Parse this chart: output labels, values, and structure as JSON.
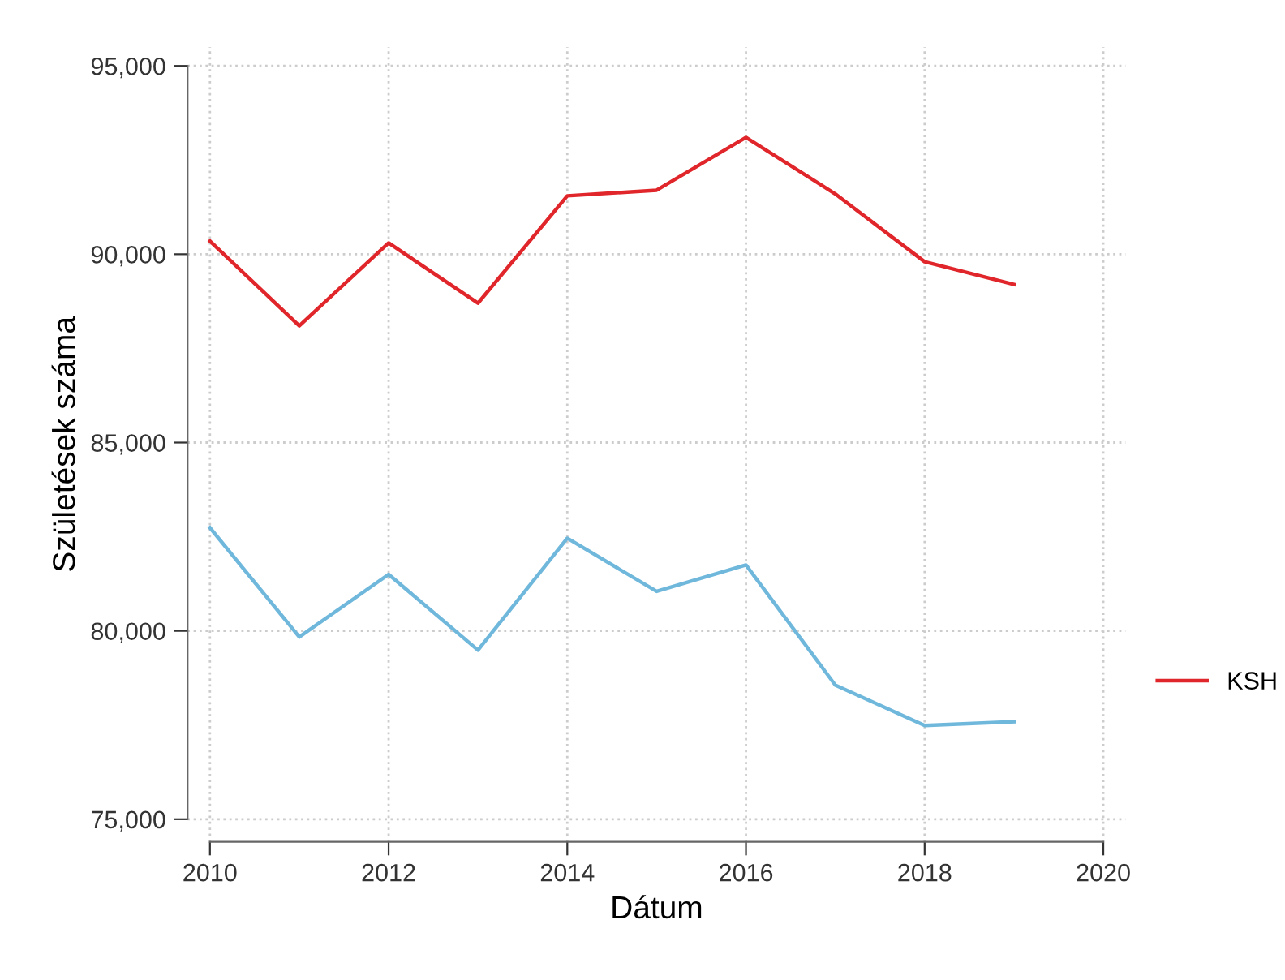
{
  "chart_data": {
    "type": "line",
    "xlabel": "Dátum",
    "ylabel": "Születések száma",
    "x": [
      2010,
      2011,
      2012,
      2013,
      2014,
      2015,
      2016,
      2017,
      2018,
      2019
    ],
    "series": [
      {
        "name": "KSH",
        "color": "#e0262a",
        "values": [
          90350,
          88100,
          90300,
          88700,
          91550,
          91700,
          93100,
          91600,
          89800,
          89200
        ]
      },
      {
        "color": "#6fb8dc",
        "values": [
          82740,
          79840,
          81500,
          79490,
          82460,
          81050,
          81750,
          78560,
          77490,
          77590
        ]
      }
    ],
    "xlim": [
      2009.75,
      2020.25
    ],
    "ylim": [
      74400,
      95500
    ],
    "xticks": [
      2010,
      2012,
      2014,
      2016,
      2018,
      2020
    ],
    "yticks": [
      {
        "value": 75000,
        "label": "75,000"
      },
      {
        "value": 80000,
        "label": "80,000"
      },
      {
        "value": 85000,
        "label": "85,000"
      },
      {
        "value": 90000,
        "label": "90,000"
      },
      {
        "value": 95000,
        "label": "95,000"
      }
    ],
    "grid": true,
    "legend": "right",
    "marker": "none",
    "line_style": "solid"
  }
}
